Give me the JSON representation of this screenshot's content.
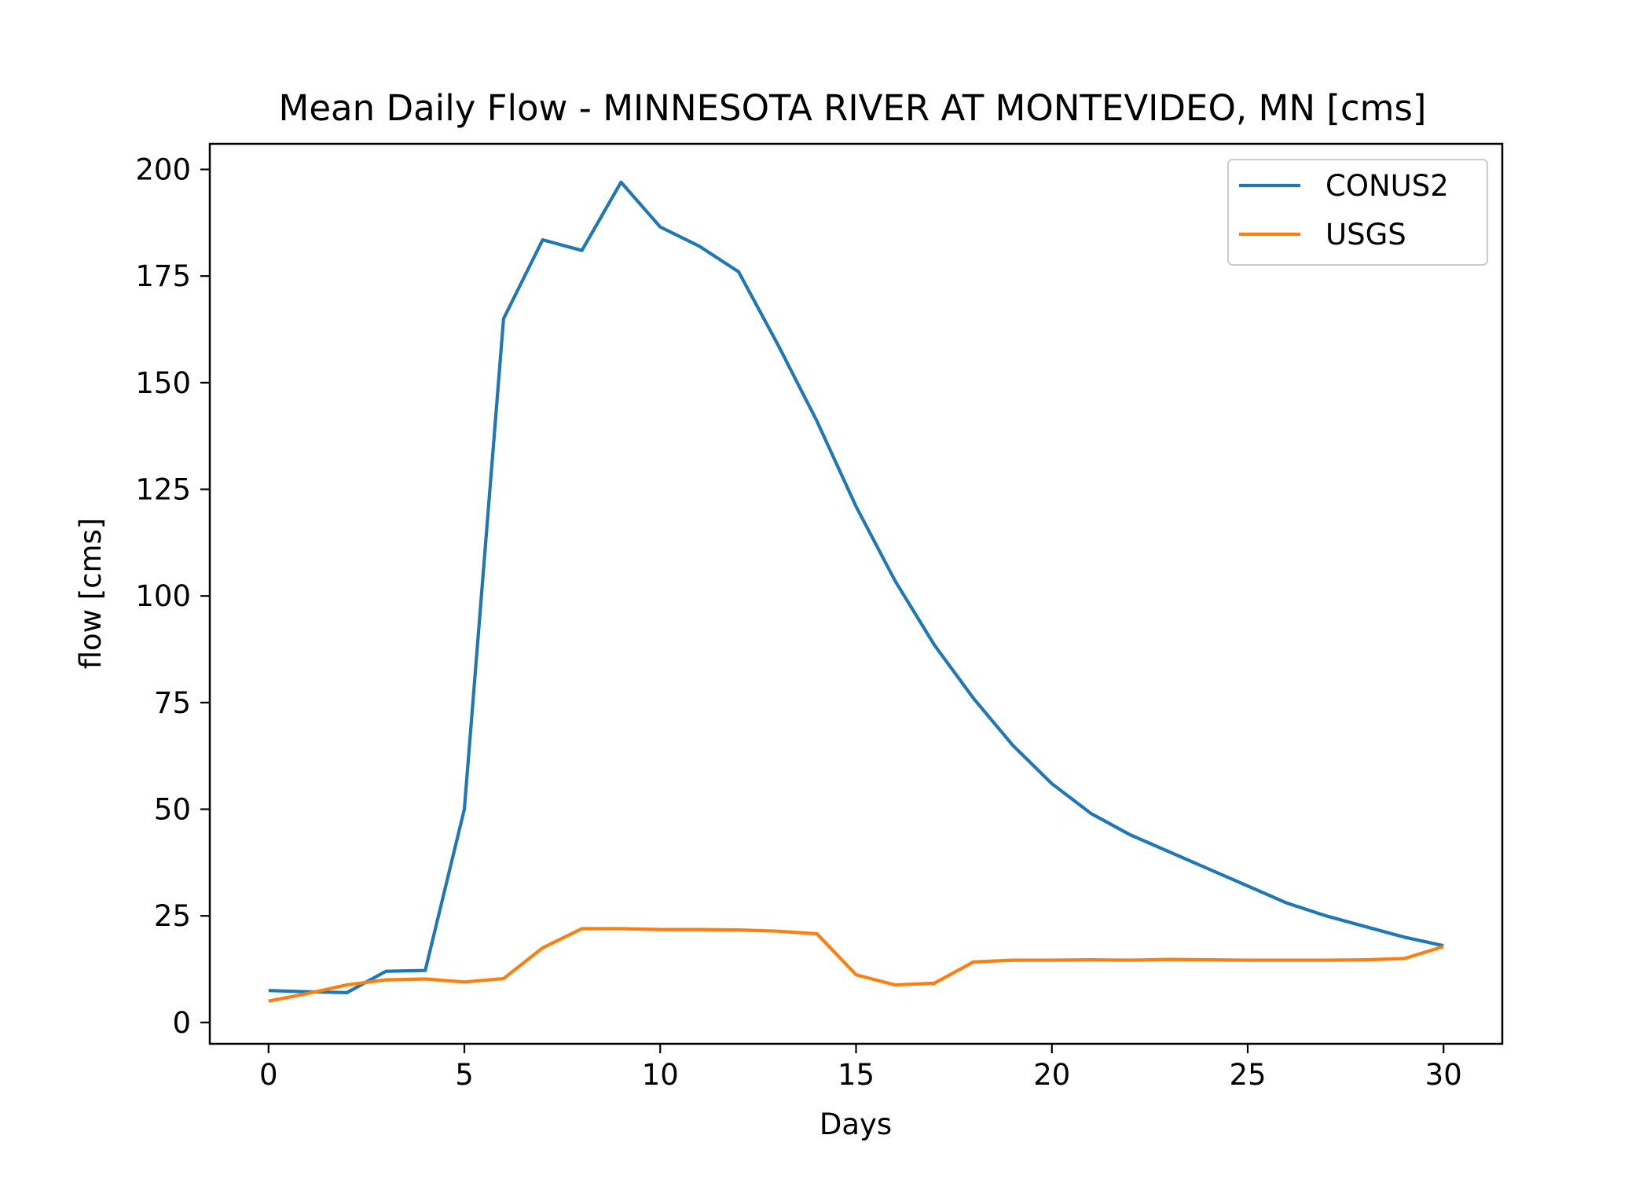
{
  "chart_data": {
    "type": "line",
    "title": "Mean Daily Flow - MINNESOTA RIVER AT MONTEVIDEO, MN [cms]",
    "xlabel": "Days",
    "ylabel": "flow [cms]",
    "xlim": [
      -1.5,
      31.5
    ],
    "ylim": [
      -5,
      206
    ],
    "xticks": [
      0,
      5,
      10,
      15,
      20,
      25,
      30
    ],
    "yticks": [
      0,
      25,
      50,
      75,
      100,
      125,
      150,
      175,
      200
    ],
    "grid": false,
    "legend_position": "top-right",
    "x": [
      0,
      1,
      2,
      3,
      4,
      5,
      6,
      7,
      8,
      9,
      10,
      11,
      12,
      13,
      14,
      15,
      16,
      17,
      18,
      19,
      20,
      21,
      22,
      23,
      24,
      25,
      26,
      27,
      28,
      29,
      30
    ],
    "series": [
      {
        "name": "CONUS2",
        "color": "#1f77b4",
        "values": [
          7.5,
          7.2,
          7.0,
          12.0,
          12.2,
          50.0,
          165.0,
          183.5,
          181.0,
          197.0,
          186.5,
          182.0,
          176.0,
          159.0,
          141.0,
          121.0,
          103.5,
          88.5,
          76.0,
          65.0,
          56.0,
          49.0,
          44.0,
          40.0,
          36.0,
          32.0,
          28.0,
          25.0,
          22.5,
          20.0,
          18.0
        ]
      },
      {
        "name": "USGS",
        "color": "#ff7f0e",
        "values": [
          5.0,
          6.8,
          8.8,
          10.0,
          10.2,
          9.5,
          10.3,
          17.5,
          22.0,
          22.0,
          21.8,
          21.8,
          21.7,
          21.4,
          20.8,
          11.2,
          8.8,
          9.2,
          14.2,
          14.6,
          14.6,
          14.7,
          14.6,
          14.8,
          14.7,
          14.6,
          14.6,
          14.6,
          14.7,
          15.0,
          17.8
        ]
      }
    ]
  }
}
